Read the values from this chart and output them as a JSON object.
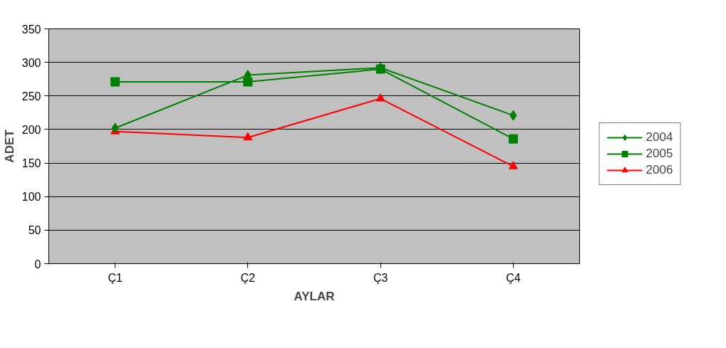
{
  "chart_data": {
    "type": "line",
    "xlabel": "AYLAR",
    "ylabel": "ADET",
    "categories": [
      "Ç1",
      "Ç2",
      "Ç3",
      "Ç4"
    ],
    "series": [
      {
        "name": "2004",
        "color": "#008000",
        "marker": "diamond",
        "values": [
          202,
          281,
          292,
          221
        ]
      },
      {
        "name": "2005",
        "color": "#008000",
        "marker": "square",
        "values": [
          271,
          271,
          290,
          186
        ]
      },
      {
        "name": "2006",
        "color": "#ff0000",
        "marker": "triangle",
        "values": [
          197,
          188,
          246,
          145
        ]
      }
    ],
    "ylim": [
      0,
      350
    ],
    "yticks": [
      0,
      50,
      100,
      150,
      200,
      250,
      300,
      350
    ],
    "grid": "y",
    "legend": "right"
  }
}
